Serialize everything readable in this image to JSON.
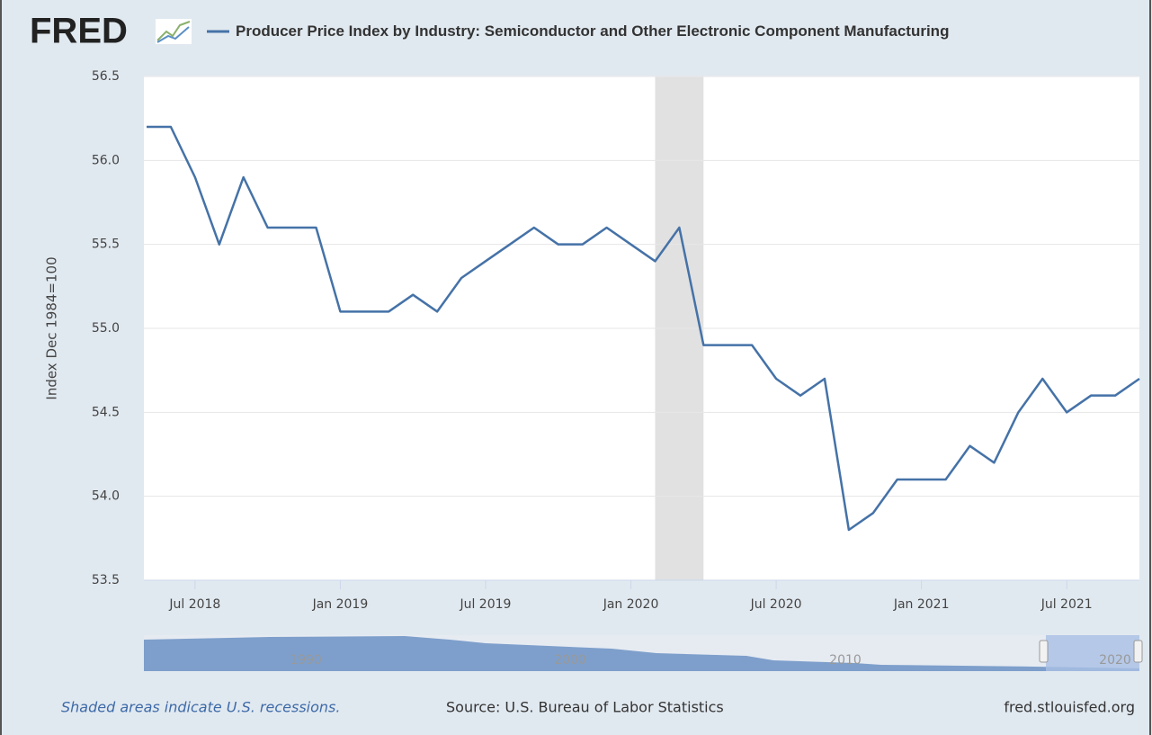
{
  "chart_data": {
    "type": "line",
    "logo": "FRED",
    "title": "Producer Price Index by Industry: Semiconductor and Other Electronic Component Manufacturing",
    "y_label": "Index Dec 1984=100",
    "x": [
      "2018-05",
      "2018-06",
      "2018-07",
      "2018-08",
      "2018-09",
      "2018-10",
      "2018-11",
      "2018-12",
      "2019-01",
      "2019-02",
      "2019-03",
      "2019-04",
      "2019-05",
      "2019-06",
      "2019-07",
      "2019-08",
      "2019-09",
      "2019-10",
      "2019-11",
      "2019-12",
      "2020-01",
      "2020-02",
      "2020-03",
      "2020-04",
      "2020-05",
      "2020-06",
      "2020-07",
      "2020-08",
      "2020-09",
      "2020-10",
      "2020-11",
      "2020-12",
      "2021-01",
      "2021-02",
      "2021-03",
      "2021-04",
      "2021-05",
      "2021-06",
      "2021-07",
      "2021-08",
      "2021-09",
      "2021-10"
    ],
    "series": [
      {
        "name": "Producer Price Index by Industry: Semiconductor and Other Electronic Component Manufacturing",
        "color": "#4572a7",
        "values": [
          56.2,
          56.2,
          55.9,
          55.5,
          55.9,
          55.6,
          55.6,
          55.6,
          55.1,
          55.1,
          55.1,
          55.2,
          55.1,
          55.3,
          55.4,
          55.5,
          55.6,
          55.5,
          55.5,
          55.6,
          55.5,
          55.4,
          55.6,
          54.9,
          54.9,
          54.9,
          54.7,
          54.6,
          54.7,
          53.8,
          53.9,
          54.1,
          54.1,
          54.1,
          54.3,
          54.2,
          54.5,
          54.7,
          54.5,
          54.6,
          54.6,
          54.7
        ]
      }
    ],
    "xlim": [
      "2018-05",
      "2021-10"
    ],
    "xticks": [
      {
        "value": "2018-07",
        "label": "Jul 2018"
      },
      {
        "value": "2019-01",
        "label": "Jan 2019"
      },
      {
        "value": "2019-07",
        "label": "Jul 2019"
      },
      {
        "value": "2020-01",
        "label": "Jan 2020"
      },
      {
        "value": "2020-07",
        "label": "Jul 2020"
      },
      {
        "value": "2021-01",
        "label": "Jan 2021"
      },
      {
        "value": "2021-07",
        "label": "Jul 2021"
      }
    ],
    "ylim": [
      53.5,
      56.5
    ],
    "yticks": [
      53.5,
      {
        "value": 54,
        "label": "54.0"
      },
      54.5,
      {
        "value": 55,
        "label": "55.0"
      },
      55.5,
      {
        "value": 56,
        "label": "56.0"
      },
      56.5
    ],
    "grid": true,
    "recessions": [
      {
        "start": "2020-02",
        "end": "2020-04"
      }
    ],
    "navigator_labels": [
      "1990",
      "2000",
      "2010",
      "2020"
    ],
    "recession_note": "Shaded areas indicate U.S. recessions.",
    "source": "Source: U.S. Bureau of Labor Statistics",
    "site": "fred.stlouisfed.org"
  }
}
